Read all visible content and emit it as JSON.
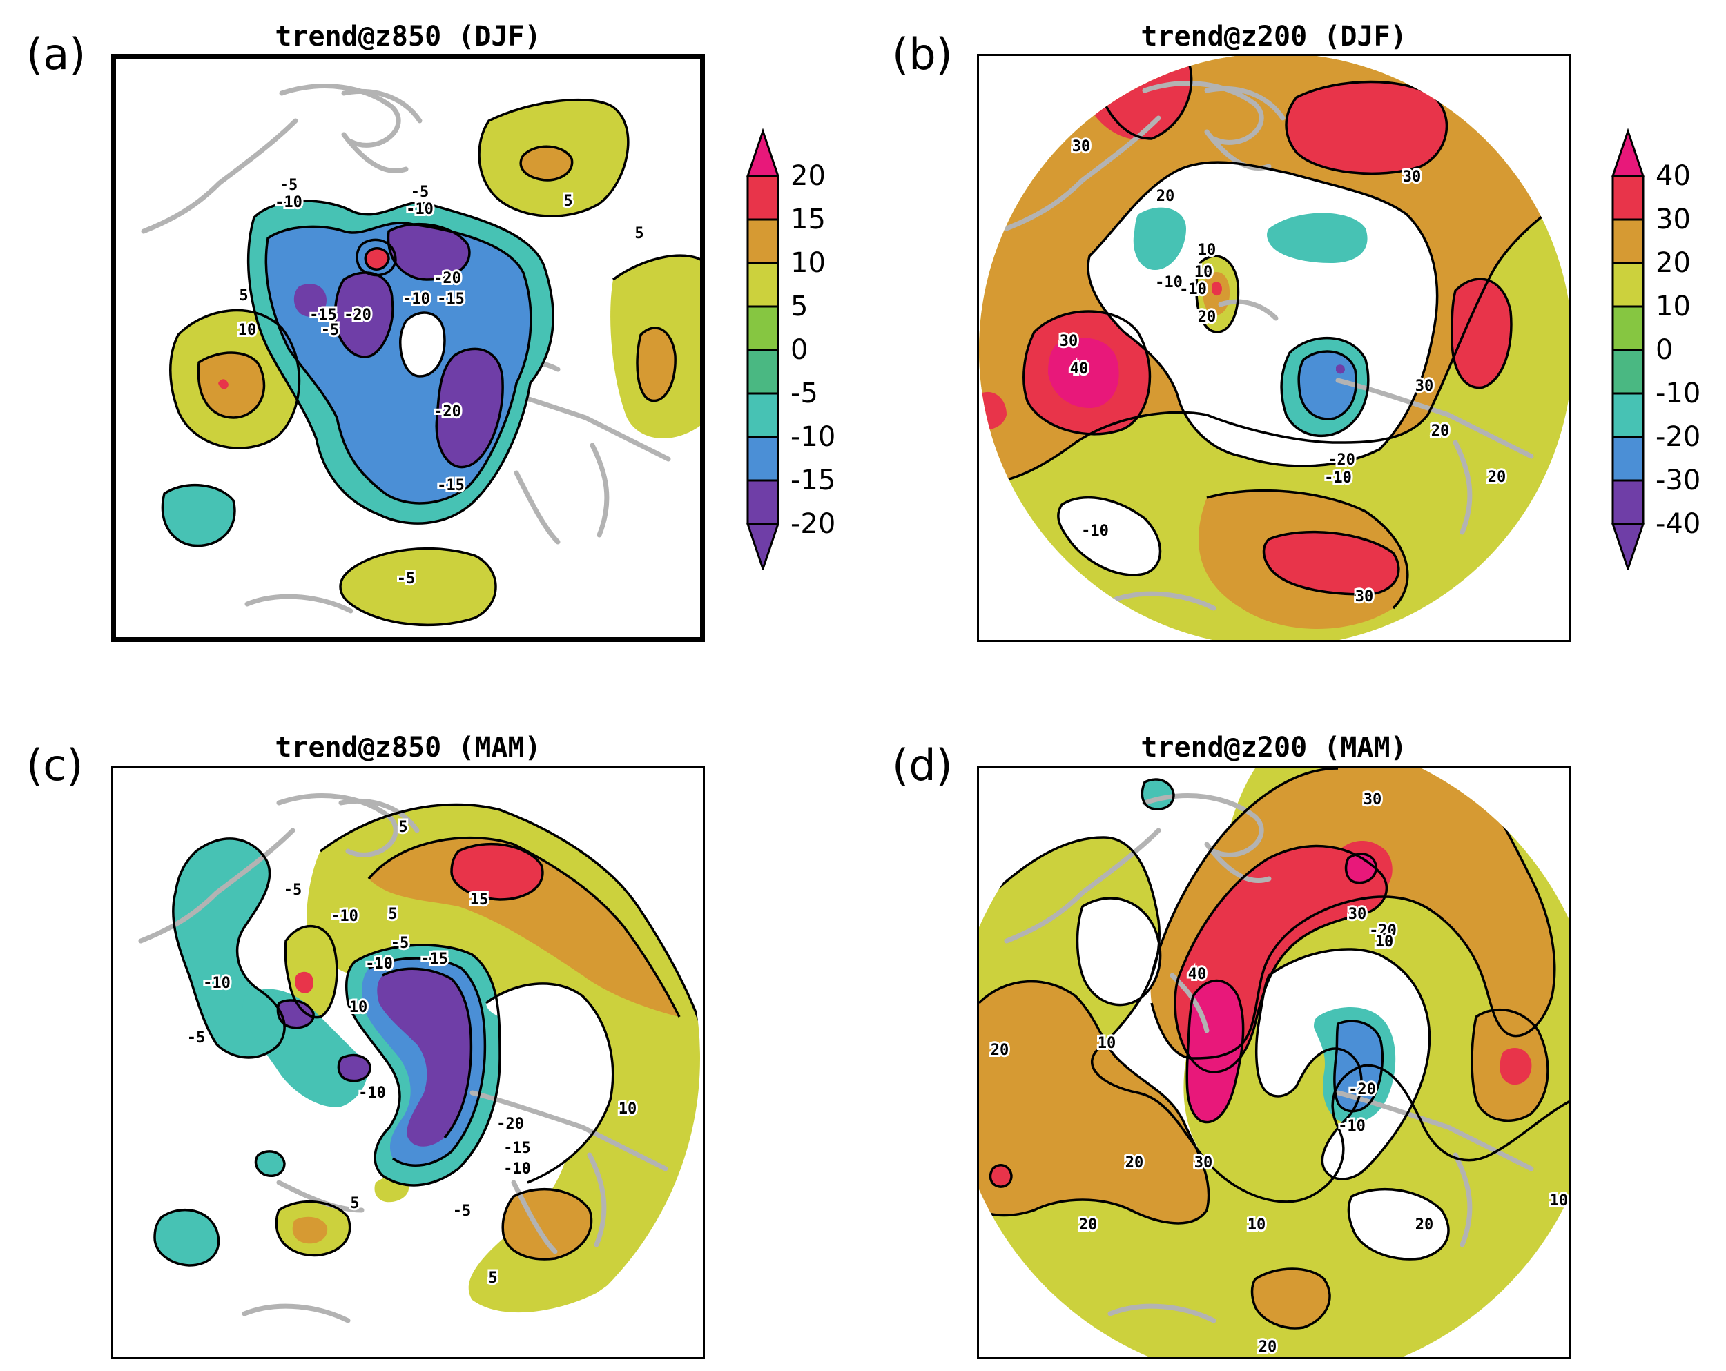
{
  "panels": [
    {
      "letter": "(a)",
      "title": "trend@z850 (DJF)"
    },
    {
      "letter": "(b)",
      "title": "trend@z200 (DJF)"
    },
    {
      "letter": "(c)",
      "title": "trend@z850 (MAM)"
    },
    {
      "letter": "(d)",
      "title": "trend@z200 (MAM)"
    }
  ],
  "colorbars": [
    {
      "labels": [
        "20",
        "15",
        "10",
        "5",
        "0",
        "-5",
        "-10",
        "-15",
        "-20"
      ]
    },
    {
      "labels": [
        "40",
        "30",
        "20",
        "10",
        "0",
        "-10",
        "-20",
        "-30",
        "-40"
      ]
    }
  ],
  "colors": {
    "c_pos4": "#e8187a",
    "c_pos3": "#e8344a",
    "c_pos2": "#d69a33",
    "c_pos1": "#ccd13d",
    "c_zero": "#86c641",
    "c_neg1": "#4ab882",
    "c_neg2": "#47c2b4",
    "c_neg3": "#4b8fd6",
    "c_neg4": "#6f3ea7",
    "c_land": "#b3b3b3"
  },
  "contour_labels": {
    "a": [
      "-5",
      "-10",
      "-5",
      "-10",
      "-20",
      "-10",
      "-15",
      "-15",
      "-20",
      "5",
      "10",
      "-20",
      "-15",
      "5",
      "5",
      "-5",
      "-5"
    ],
    "b": [
      "30",
      "20",
      "10",
      "-10",
      "-10",
      "10",
      "20",
      "30",
      "40",
      "30",
      "20",
      "-20",
      "-10",
      "20",
      "-10",
      "30",
      "30"
    ],
    "c": [
      "5",
      "-5",
      "-10",
      "15",
      "5",
      "-5",
      "-10",
      "-15",
      "-10",
      "10",
      "-5",
      "-10",
      "-20",
      "-15",
      "-10",
      "5",
      "-5",
      "10",
      "5"
    ],
    "d": [
      "30",
      "30",
      "-20",
      "10",
      "40",
      "10",
      "20",
      "-20",
      "-10",
      "30",
      "20",
      "20",
      "10",
      "20",
      "10",
      "20"
    ]
  }
}
